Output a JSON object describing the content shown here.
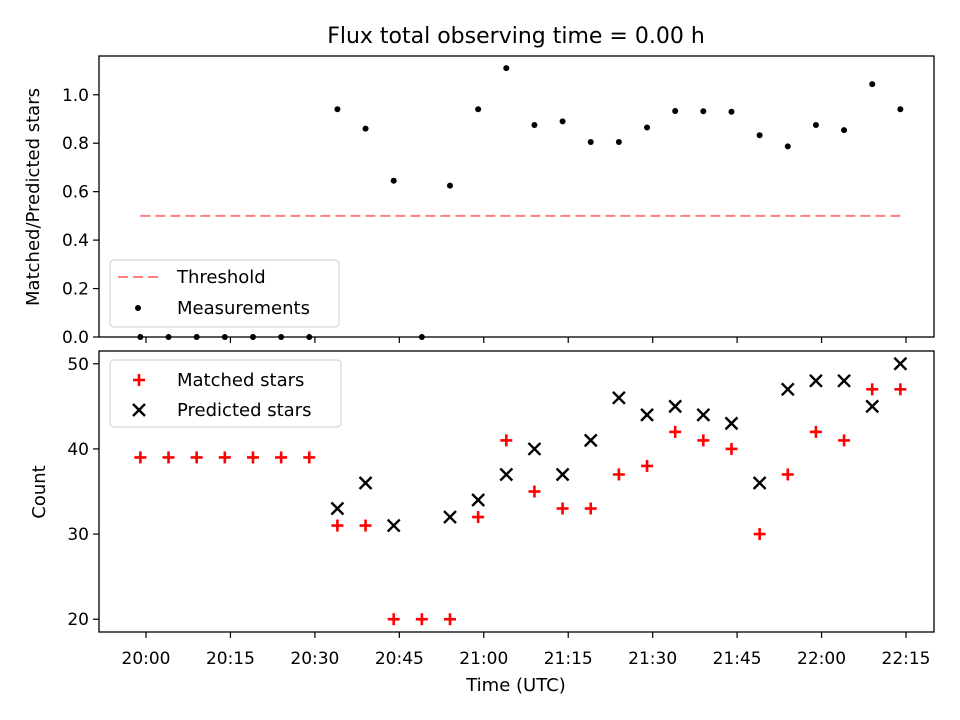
{
  "chart_data": [
    {
      "type": "scatter",
      "title": "Flux total observing time = 0.00 h",
      "xlabel": "",
      "ylabel": "Matched/Predicted stars",
      "ylim": [
        0,
        1.16
      ],
      "yticks": [
        "0.0",
        "0.2",
        "0.4",
        "0.6",
        "0.8",
        "1.0"
      ],
      "x": [
        "19:59",
        "20:04",
        "20:09",
        "20:14",
        "20:19",
        "20:24",
        "20:29",
        "20:34",
        "20:39",
        "20:44",
        "20:49",
        "20:54",
        "20:59",
        "21:04",
        "21:09",
        "21:14",
        "21:19",
        "21:24",
        "21:29",
        "21:34",
        "21:39",
        "21:44",
        "21:49",
        "21:54",
        "21:59",
        "22:04",
        "22:09",
        "22:14"
      ],
      "series": [
        {
          "name": "Measurements",
          "values": [
            0,
            0,
            0,
            0,
            0,
            0,
            0,
            0.94,
            0.86,
            0.645,
            0,
            0.625,
            0.94,
            1.11,
            0.875,
            0.89,
            0.805,
            0.805,
            0.865,
            0.933,
            0.932,
            0.93,
            0.833,
            0.787,
            0.875,
            0.854,
            1.044,
            0.94
          ],
          "color": "#000000"
        },
        {
          "name": "Threshold",
          "x": [
            "19:59",
            "22:14"
          ],
          "values": [
            0.5,
            0.5
          ],
          "color": "#ff7f7f",
          "style": "dashed"
        }
      ],
      "legend": "lower-left"
    },
    {
      "type": "scatter",
      "xlabel": "Time (UTC)",
      "ylabel": "Count",
      "ylim": [
        18.5,
        51.5
      ],
      "yticks": [
        "20",
        "30",
        "40",
        "50"
      ],
      "xticks": [
        "20:00",
        "20:15",
        "20:30",
        "20:45",
        "21:00",
        "21:15",
        "21:30",
        "21:45",
        "22:00",
        "22:15"
      ],
      "series": [
        {
          "name": "Matched stars",
          "marker": "+",
          "color": "#ff0000",
          "x": [
            "19:59",
            "20:04",
            "20:09",
            "20:14",
            "20:19",
            "20:24",
            "20:29",
            "20:34",
            "20:39",
            "20:44",
            "20:49",
            "20:54",
            "20:59",
            "21:04",
            "21:09",
            "21:14",
            "21:19",
            "21:24",
            "21:29",
            "21:34",
            "21:39",
            "21:44",
            "21:49",
            "21:54",
            "21:59",
            "22:04",
            "22:09",
            "22:14"
          ],
          "values": [
            39,
            39,
            39,
            39,
            39,
            39,
            39,
            31,
            31,
            20,
            20,
            20,
            32,
            41,
            35,
            33,
            33,
            37,
            38,
            42,
            41,
            40,
            30,
            37,
            42,
            41,
            47,
            47
          ]
        },
        {
          "name": "Predicted stars",
          "marker": "x",
          "color": "#000000",
          "x": [
            "20:34",
            "20:39",
            "20:44",
            "20:54",
            "20:59",
            "21:04",
            "21:09",
            "21:14",
            "21:19",
            "21:24",
            "21:29",
            "21:34",
            "21:39",
            "21:44",
            "21:49",
            "21:54",
            "21:59",
            "22:04",
            "22:09",
            "22:14"
          ],
          "values": [
            33,
            36,
            31,
            32,
            34,
            37,
            40,
            37,
            41,
            46,
            44,
            45,
            44,
            43,
            36,
            47,
            48,
            48,
            45,
            50
          ]
        }
      ],
      "legend": "top-left"
    }
  ]
}
